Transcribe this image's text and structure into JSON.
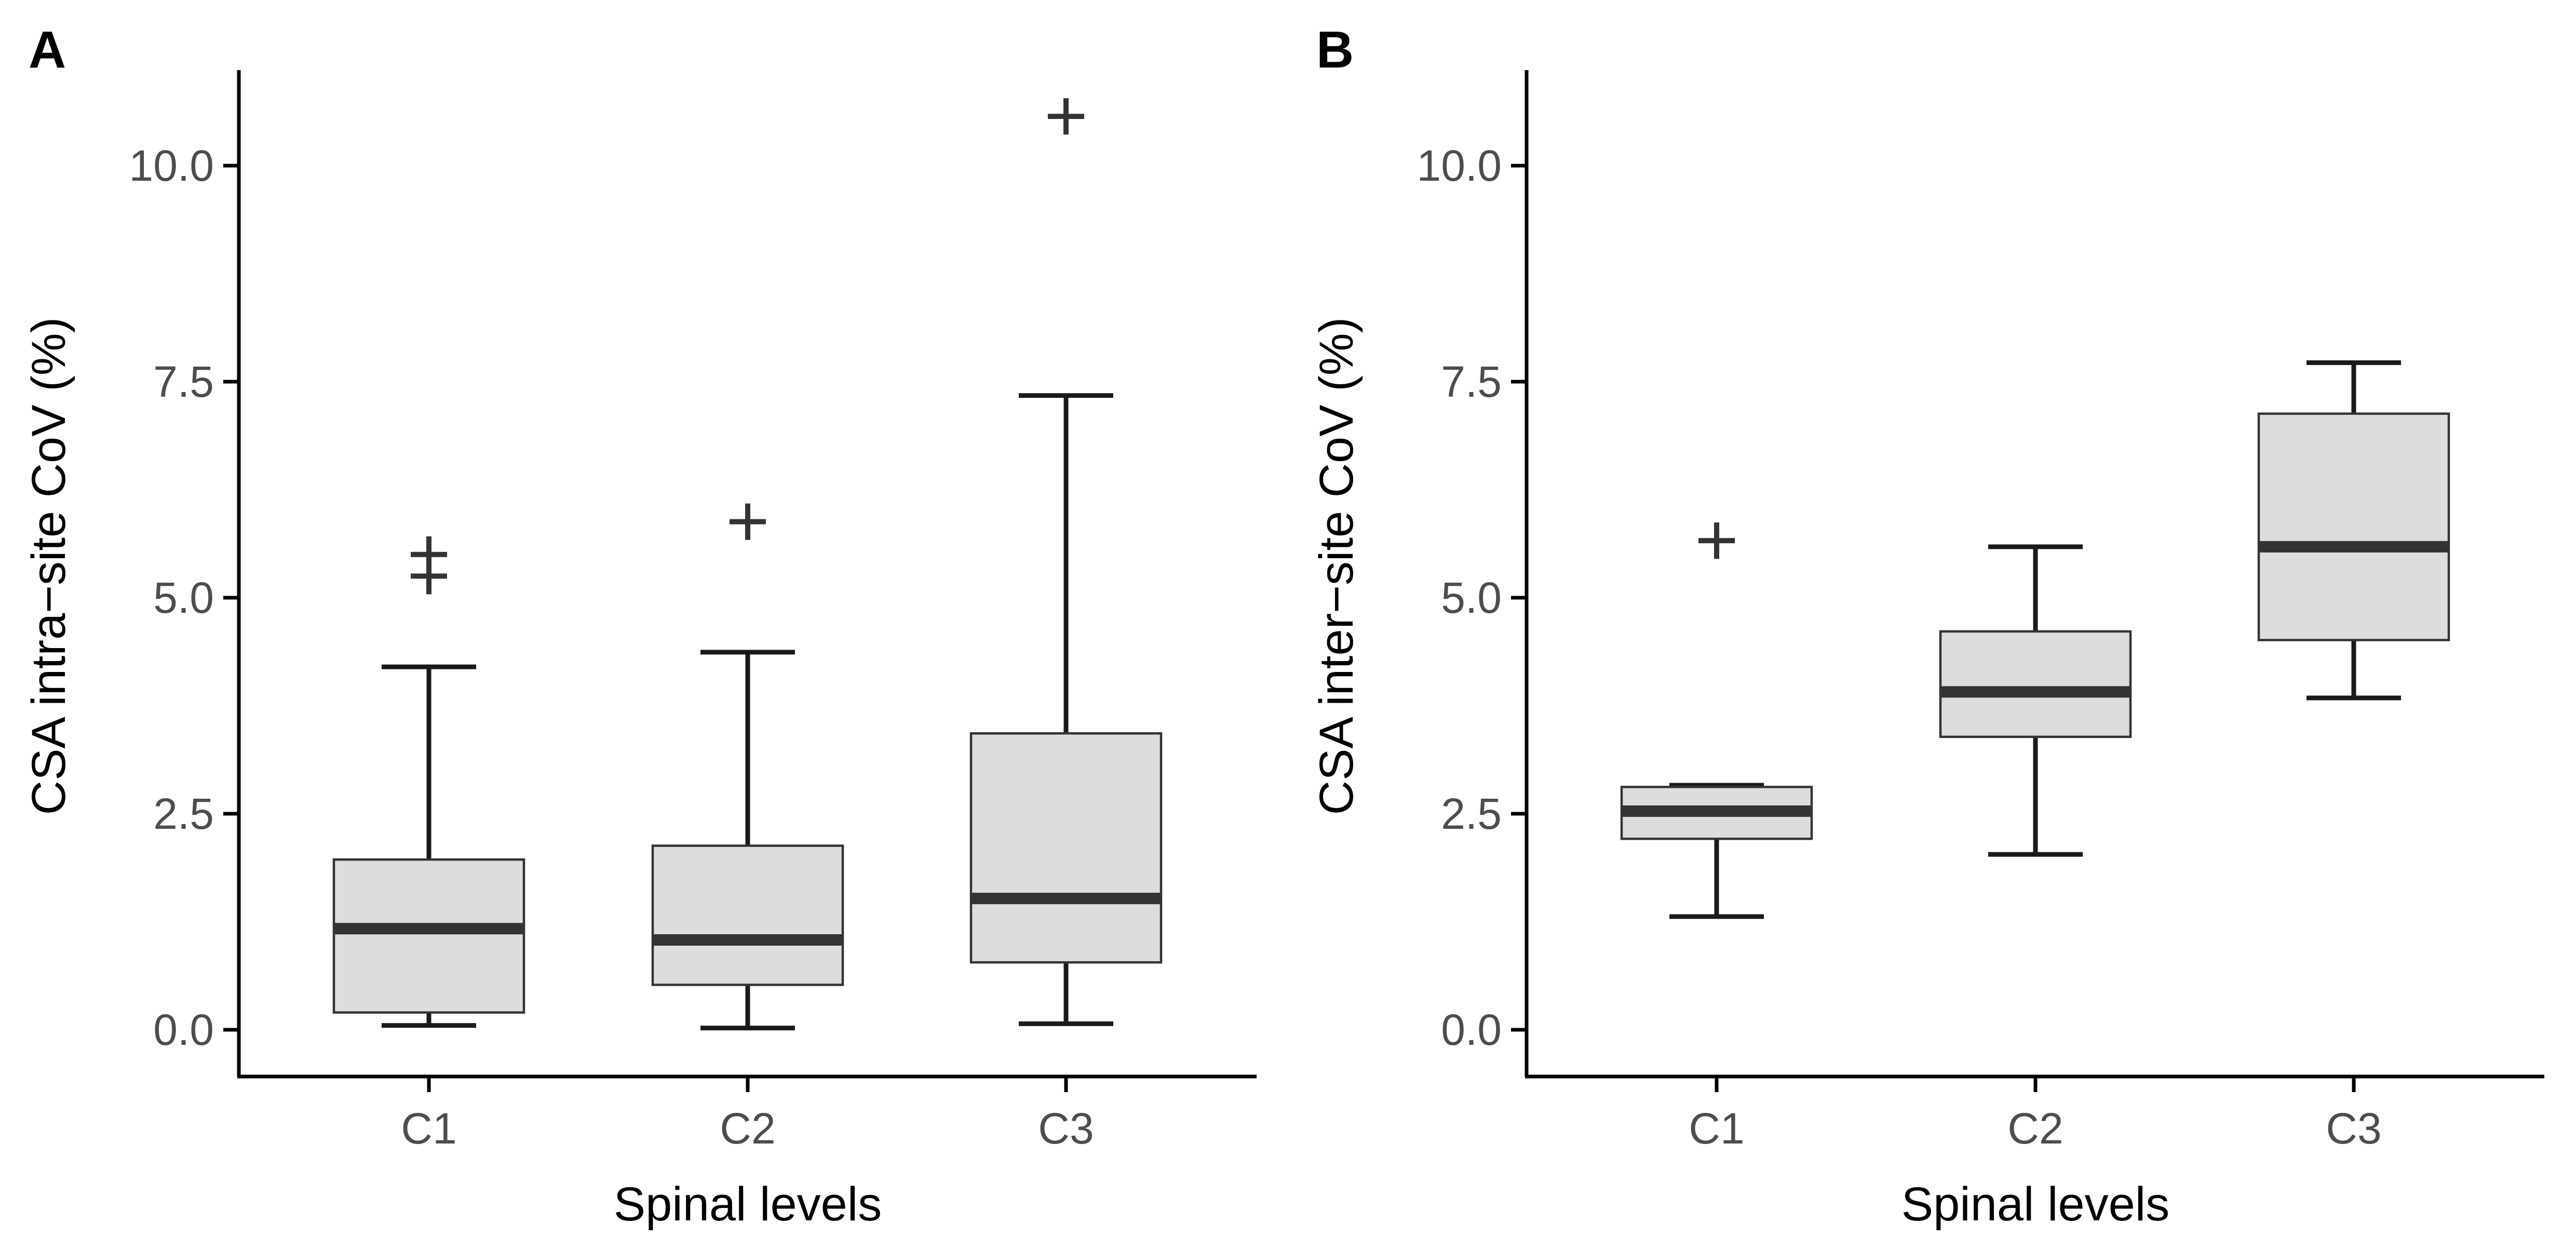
{
  "colors": {
    "box_fill": "#dddddd",
    "box_stroke": "#333333",
    "median": "#333333",
    "whisker": "#1a1a1a",
    "axis": "#000000",
    "tick_label": "#4d4d4d"
  },
  "chart_data": [
    {
      "type": "boxplot",
      "panel_label": "A",
      "xlabel": "Spinal levels",
      "ylabel": "CSA intra−site CoV (%)",
      "ylim": [
        -0.5,
        11.1
      ],
      "yticks": [
        0.0,
        2.5,
        5.0,
        7.5,
        10.0
      ],
      "ytick_labels": [
        "0.0",
        "2.5",
        "5.0",
        "7.5",
        "10.0"
      ],
      "categories": [
        "C1",
        "C2",
        "C3"
      ],
      "boxes": [
        {
          "category": "C1",
          "whisker_low": 0.05,
          "q1": 0.2,
          "median": 1.17,
          "q3": 1.97,
          "whisker_high": 4.2,
          "outliers": [
            5.25,
            5.5
          ]
        },
        {
          "category": "C2",
          "whisker_low": 0.02,
          "q1": 0.52,
          "median": 1.04,
          "q3": 2.13,
          "whisker_high": 4.37,
          "outliers": [
            5.88
          ]
        },
        {
          "category": "C3",
          "whisker_low": 0.07,
          "q1": 0.78,
          "median": 1.52,
          "q3": 3.43,
          "whisker_high": 7.34,
          "outliers": [
            10.57
          ]
        }
      ]
    },
    {
      "type": "boxplot",
      "panel_label": "B",
      "xlabel": "Spinal levels",
      "ylabel": "CSA inter−site CoV (%)",
      "ylim": [
        -0.5,
        11.1
      ],
      "yticks": [
        0.0,
        2.5,
        5.0,
        7.5,
        10.0
      ],
      "ytick_labels": [
        "0.0",
        "2.5",
        "5.0",
        "7.5",
        "10.0"
      ],
      "categories": [
        "C1",
        "C2",
        "C3"
      ],
      "boxes": [
        {
          "category": "C1",
          "whisker_low": 1.31,
          "q1": 2.21,
          "median": 2.53,
          "q3": 2.81,
          "whisker_high": 2.83,
          "outliers": [
            5.66
          ]
        },
        {
          "category": "C2",
          "whisker_low": 2.03,
          "q1": 3.39,
          "median": 3.91,
          "q3": 4.61,
          "whisker_high": 5.59,
          "outliers": []
        },
        {
          "category": "C3",
          "whisker_low": 3.84,
          "q1": 4.51,
          "median": 5.59,
          "q3": 7.13,
          "whisker_high": 7.72,
          "outliers": []
        }
      ]
    }
  ]
}
